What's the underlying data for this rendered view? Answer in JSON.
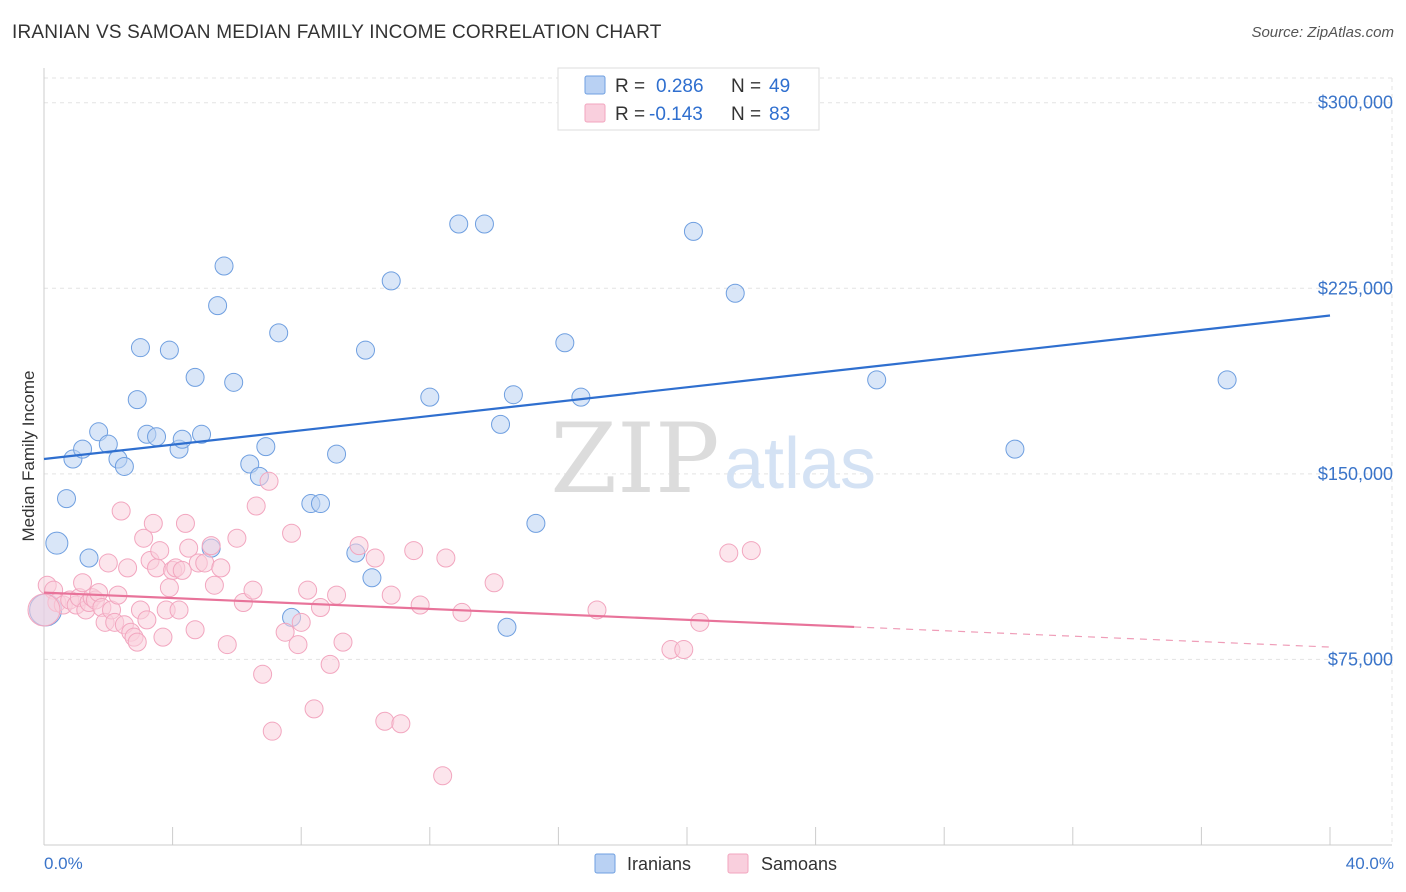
{
  "title": "IRANIAN VS SAMOAN MEDIAN FAMILY INCOME CORRELATION CHART",
  "source": "Source: ZipAtlas.com",
  "watermark": {
    "zip": "ZIP",
    "atlas": "atlas"
  },
  "chart_data": {
    "type": "scatter",
    "title": "IRANIAN VS SAMOAN MEDIAN FAMILY INCOME CORRELATION CHART",
    "xlabel": "",
    "ylabel": "Median Family Income",
    "xlim": [
      0,
      40
    ],
    "ylim": [
      0,
      310000
    ],
    "x_tick_labels": {
      "left": "0.0%",
      "right": "40.0%"
    },
    "y_ticks": [
      {
        "value": 75000,
        "label": "$75,000"
      },
      {
        "value": 150000,
        "label": "$150,000"
      },
      {
        "value": 225000,
        "label": "$225,000"
      },
      {
        "value": 300000,
        "label": "$300,000"
      }
    ],
    "grid": true,
    "legend_position": "top-center",
    "stats": [
      {
        "r_label": "R = ",
        "r_value": "0.286",
        "n_label": "N = ",
        "n_value": "49"
      },
      {
        "r_label": "R = ",
        "r_value": "-0.143",
        "n_label": "N = ",
        "n_value": "83"
      }
    ],
    "series": [
      {
        "name": "Iranians",
        "color": "#6f9fe0",
        "fill": "#b9d1f3",
        "line_color": "#2f6fcf",
        "trend": {
          "x": [
            0,
            40
          ],
          "y": [
            156000,
            214000
          ],
          "solid_to": 40
        },
        "points": [
          [
            0.4,
            122000
          ],
          [
            0.7,
            140000
          ],
          [
            0.9,
            156000
          ],
          [
            1.2,
            160000
          ],
          [
            1.4,
            116000
          ],
          [
            1.7,
            167000
          ],
          [
            2.0,
            162000
          ],
          [
            2.3,
            156000
          ],
          [
            2.5,
            153000
          ],
          [
            2.9,
            180000
          ],
          [
            3.0,
            201000
          ],
          [
            3.2,
            166000
          ],
          [
            3.5,
            165000
          ],
          [
            3.9,
            200000
          ],
          [
            4.2,
            160000
          ],
          [
            4.3,
            164000
          ],
          [
            4.7,
            189000
          ],
          [
            4.9,
            166000
          ],
          [
            5.2,
            120000
          ],
          [
            5.4,
            218000
          ],
          [
            5.6,
            234000
          ],
          [
            5.9,
            187000
          ],
          [
            6.4,
            154000
          ],
          [
            6.7,
            149000
          ],
          [
            6.9,
            161000
          ],
          [
            7.3,
            207000
          ],
          [
            7.7,
            92000
          ],
          [
            8.3,
            138000
          ],
          [
            8.6,
            138000
          ],
          [
            9.1,
            158000
          ],
          [
            9.7,
            118000
          ],
          [
            10.0,
            200000
          ],
          [
            10.2,
            108000
          ],
          [
            10.8,
            228000
          ],
          [
            12.0,
            181000
          ],
          [
            12.9,
            251000
          ],
          [
            13.7,
            251000
          ],
          [
            14.2,
            170000
          ],
          [
            14.4,
            88000
          ],
          [
            14.6,
            182000
          ],
          [
            15.3,
            130000
          ],
          [
            16.2,
            203000
          ],
          [
            16.7,
            181000
          ],
          [
            20.2,
            248000
          ],
          [
            21.5,
            223000
          ],
          [
            25.9,
            188000
          ],
          [
            30.2,
            160000
          ],
          [
            36.8,
            188000
          ],
          [
            0.05,
            95000
          ]
        ]
      },
      {
        "name": "Samoans",
        "color": "#f2a6bf",
        "fill": "#f9cfdd",
        "line_color": "#e8739a",
        "trend": {
          "x": [
            0,
            40
          ],
          "y": [
            102000,
            80000
          ],
          "solid_to": 25.2
        },
        "points": [
          [
            0.1,
            105000
          ],
          [
            0.3,
            103000
          ],
          [
            0.4,
            98000
          ],
          [
            0.6,
            97000
          ],
          [
            0.8,
            99000
          ],
          [
            1.0,
            97000
          ],
          [
            1.1,
            100000
          ],
          [
            1.2,
            106000
          ],
          [
            1.3,
            95000
          ],
          [
            1.4,
            98000
          ],
          [
            1.5,
            100000
          ],
          [
            1.6,
            99000
          ],
          [
            1.7,
            102000
          ],
          [
            1.8,
            96000
          ],
          [
            1.9,
            90000
          ],
          [
            2.0,
            114000
          ],
          [
            2.1,
            95000
          ],
          [
            2.2,
            90000
          ],
          [
            2.3,
            101000
          ],
          [
            2.4,
            135000
          ],
          [
            2.5,
            89000
          ],
          [
            2.6,
            112000
          ],
          [
            2.7,
            86000
          ],
          [
            2.8,
            84000
          ],
          [
            2.9,
            82000
          ],
          [
            3.0,
            95000
          ],
          [
            3.1,
            124000
          ],
          [
            3.2,
            91000
          ],
          [
            3.3,
            115000
          ],
          [
            3.4,
            130000
          ],
          [
            3.5,
            112000
          ],
          [
            3.6,
            119000
          ],
          [
            3.7,
            84000
          ],
          [
            3.8,
            95000
          ],
          [
            3.9,
            104000
          ],
          [
            4.0,
            111000
          ],
          [
            4.1,
            112000
          ],
          [
            4.2,
            95000
          ],
          [
            4.3,
            111000
          ],
          [
            4.4,
            130000
          ],
          [
            4.5,
            120000
          ],
          [
            4.7,
            87000
          ],
          [
            4.8,
            114000
          ],
          [
            5.0,
            114000
          ],
          [
            5.2,
            121000
          ],
          [
            5.3,
            105000
          ],
          [
            5.5,
            112000
          ],
          [
            5.7,
            81000
          ],
          [
            6.0,
            124000
          ],
          [
            6.2,
            98000
          ],
          [
            6.5,
            103000
          ],
          [
            6.6,
            137000
          ],
          [
            6.8,
            69000
          ],
          [
            7.0,
            147000
          ],
          [
            7.1,
            46000
          ],
          [
            7.5,
            86000
          ],
          [
            7.7,
            126000
          ],
          [
            7.9,
            81000
          ],
          [
            8.0,
            90000
          ],
          [
            8.2,
            103000
          ],
          [
            8.4,
            55000
          ],
          [
            8.6,
            96000
          ],
          [
            8.9,
            73000
          ],
          [
            9.1,
            101000
          ],
          [
            9.3,
            82000
          ],
          [
            9.8,
            121000
          ],
          [
            10.3,
            116000
          ],
          [
            10.6,
            50000
          ],
          [
            10.8,
            101000
          ],
          [
            11.1,
            49000
          ],
          [
            11.5,
            119000
          ],
          [
            11.7,
            97000
          ],
          [
            12.5,
            116000
          ],
          [
            12.4,
            28000
          ],
          [
            13.0,
            94000
          ],
          [
            14.0,
            106000
          ],
          [
            17.2,
            95000
          ],
          [
            19.5,
            79000
          ],
          [
            19.9,
            79000
          ],
          [
            20.4,
            90000
          ],
          [
            21.3,
            118000
          ],
          [
            22.0,
            119000
          ],
          [
            0.0,
            95000
          ]
        ]
      }
    ]
  }
}
